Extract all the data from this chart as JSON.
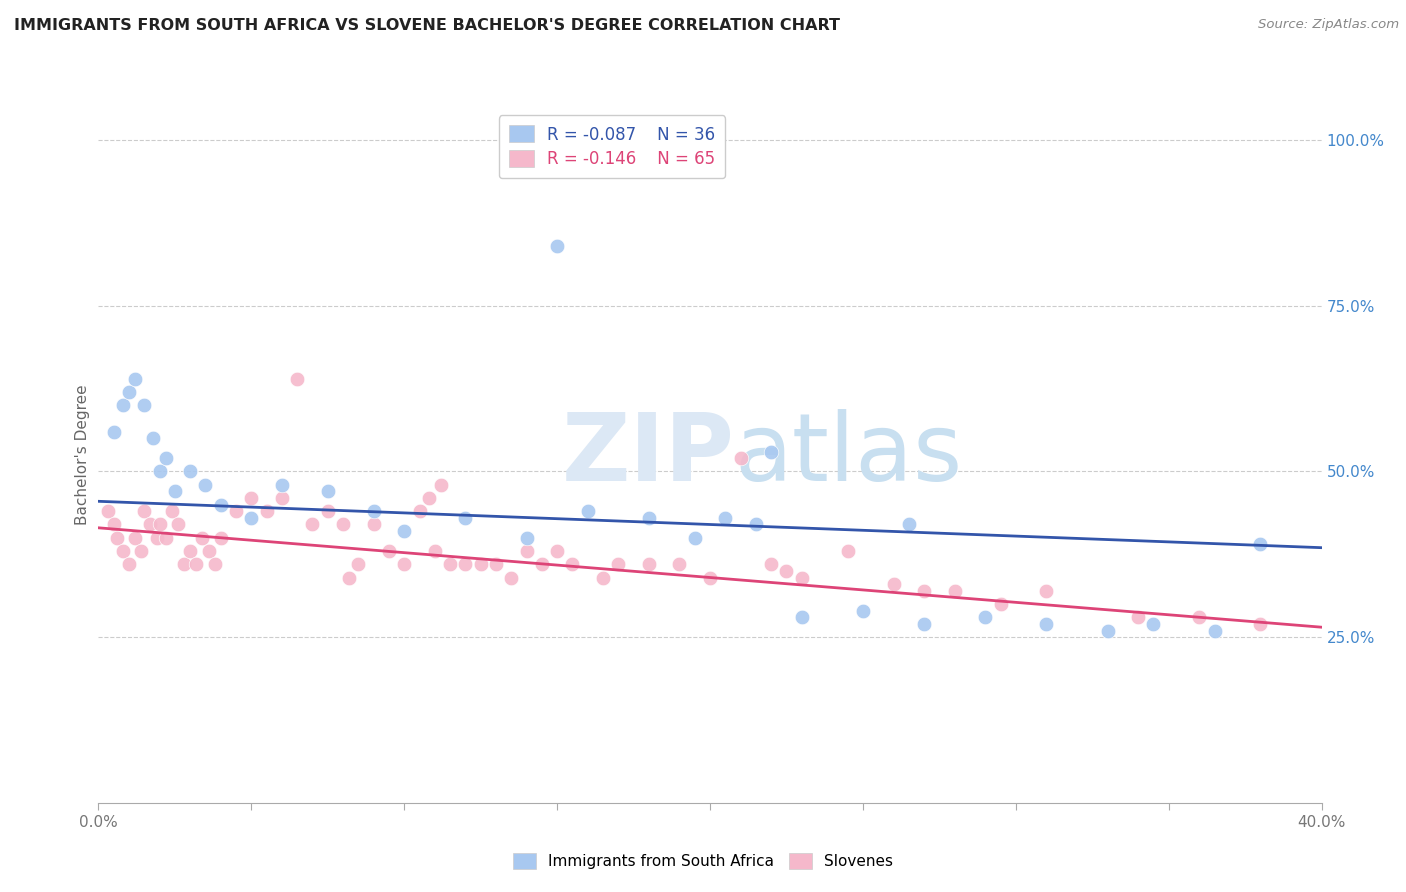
{
  "title": "IMMIGRANTS FROM SOUTH AFRICA VS SLOVENE BACHELOR'S DEGREE CORRELATION CHART",
  "source": "Source: ZipAtlas.com",
  "ylabel": "Bachelor's Degree",
  "legend_label1": "Immigrants from South Africa",
  "legend_label2": "Slovenes",
  "R1": -0.087,
  "N1": 36,
  "R2": -0.146,
  "N2": 65,
  "color1": "#a8c8f0",
  "color2": "#f5b8cb",
  "line_color1": "#3355aa",
  "line_color2": "#dd4477",
  "right_tick_color": "#4488cc",
  "background": "#ffffff",
  "watermark_zip": "ZIP",
  "watermark_atlas": "atlas",
  "blue_x": [
    0.5,
    0.8,
    1.0,
    1.2,
    1.5,
    1.8,
    2.0,
    2.2,
    2.5,
    3.0,
    3.5,
    4.0,
    5.0,
    6.0,
    7.5,
    9.0,
    12.0,
    14.0,
    16.0,
    18.0,
    19.5,
    21.5,
    23.0,
    25.0,
    27.0,
    29.0,
    31.0,
    33.0,
    34.5,
    36.5,
    10.0,
    20.5,
    26.5,
    38.0,
    22.0,
    15.0
  ],
  "blue_y": [
    0.56,
    0.6,
    0.62,
    0.64,
    0.6,
    0.55,
    0.5,
    0.52,
    0.47,
    0.5,
    0.48,
    0.45,
    0.43,
    0.48,
    0.47,
    0.44,
    0.43,
    0.4,
    0.44,
    0.43,
    0.4,
    0.42,
    0.28,
    0.29,
    0.27,
    0.28,
    0.27,
    0.26,
    0.27,
    0.26,
    0.41,
    0.43,
    0.42,
    0.39,
    0.53,
    0.84
  ],
  "pink_x": [
    0.3,
    0.5,
    0.6,
    0.8,
    1.0,
    1.2,
    1.4,
    1.5,
    1.7,
    1.9,
    2.0,
    2.2,
    2.4,
    2.6,
    2.8,
    3.0,
    3.2,
    3.4,
    3.6,
    3.8,
    4.0,
    4.5,
    5.0,
    5.5,
    6.0,
    6.5,
    7.0,
    7.5,
    8.0,
    8.5,
    9.0,
    9.5,
    10.0,
    10.5,
    11.0,
    11.5,
    12.0,
    12.5,
    13.0,
    13.5,
    14.0,
    14.5,
    15.0,
    15.5,
    16.5,
    17.0,
    18.0,
    19.0,
    20.0,
    21.0,
    22.0,
    23.0,
    24.5,
    26.0,
    27.0,
    28.0,
    29.5,
    31.0,
    34.0,
    36.0,
    10.8,
    11.2,
    38.0,
    8.2,
    22.5
  ],
  "pink_y": [
    0.44,
    0.42,
    0.4,
    0.38,
    0.36,
    0.4,
    0.38,
    0.44,
    0.42,
    0.4,
    0.42,
    0.4,
    0.44,
    0.42,
    0.36,
    0.38,
    0.36,
    0.4,
    0.38,
    0.36,
    0.4,
    0.44,
    0.46,
    0.44,
    0.46,
    0.64,
    0.42,
    0.44,
    0.42,
    0.36,
    0.42,
    0.38,
    0.36,
    0.44,
    0.38,
    0.36,
    0.36,
    0.36,
    0.36,
    0.34,
    0.38,
    0.36,
    0.38,
    0.36,
    0.34,
    0.36,
    0.36,
    0.36,
    0.34,
    0.52,
    0.36,
    0.34,
    0.38,
    0.33,
    0.32,
    0.32,
    0.3,
    0.32,
    0.28,
    0.28,
    0.46,
    0.48,
    0.27,
    0.34,
    0.35
  ],
  "xlim": [
    0,
    40
  ],
  "ylim": [
    0,
    1.05
  ],
  "ygrid_vals": [
    0.25,
    0.5,
    0.75,
    1.0
  ],
  "ygrid_labels": [
    "25.0%",
    "50.0%",
    "75.0%",
    "100.0%"
  ],
  "blue_intercept": 0.455,
  "blue_slope": -0.00175,
  "pink_intercept": 0.415,
  "pink_slope": -0.00375
}
